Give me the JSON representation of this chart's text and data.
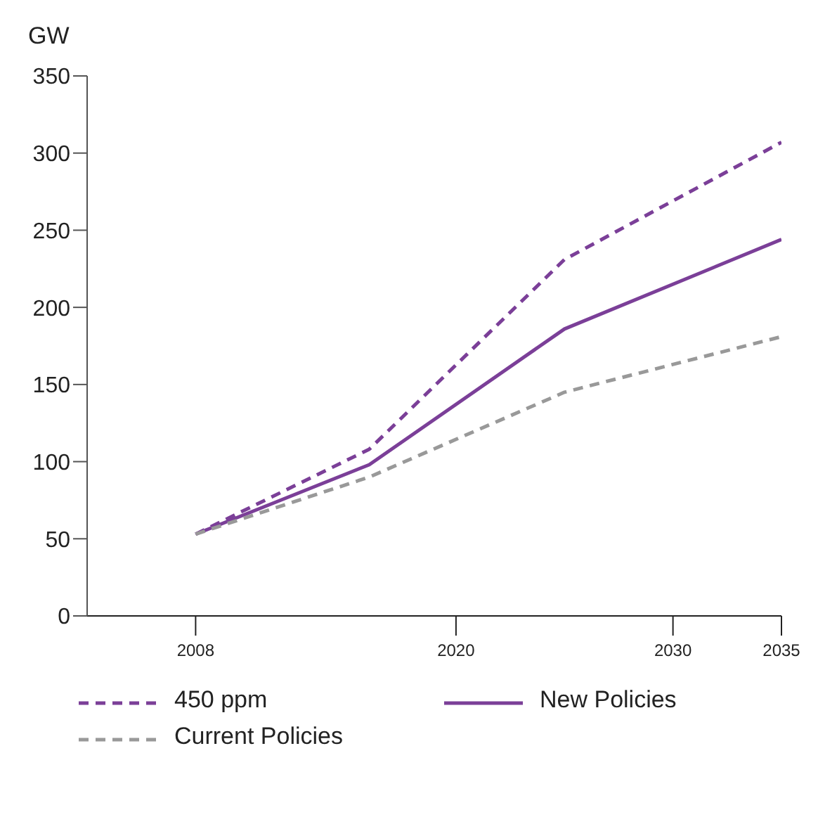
{
  "chart_data": {
    "type": "line",
    "ylabel": "GW",
    "x": [
      2008,
      2016,
      2025,
      2035
    ],
    "xlim": [
      2003,
      2035
    ],
    "xticks": [
      2008,
      2020,
      2030,
      2035
    ],
    "ylim": [
      0,
      350
    ],
    "yticks": [
      0,
      50,
      100,
      150,
      200,
      250,
      300,
      350
    ],
    "grid": false,
    "legend": "bottom",
    "marker": "none",
    "series": [
      {
        "name": "450 ppm",
        "color": "#7b3f98",
        "line_style": "dashed",
        "values": [
          53,
          108,
          231,
          307
        ]
      },
      {
        "name": "New Policies",
        "color": "#7b3f98",
        "line_style": "solid",
        "values": [
          53,
          98,
          186,
          244
        ]
      },
      {
        "name": "Current Policies",
        "color": "#999999",
        "line_style": "dashed",
        "values": [
          53,
          90,
          145,
          181
        ]
      }
    ]
  }
}
